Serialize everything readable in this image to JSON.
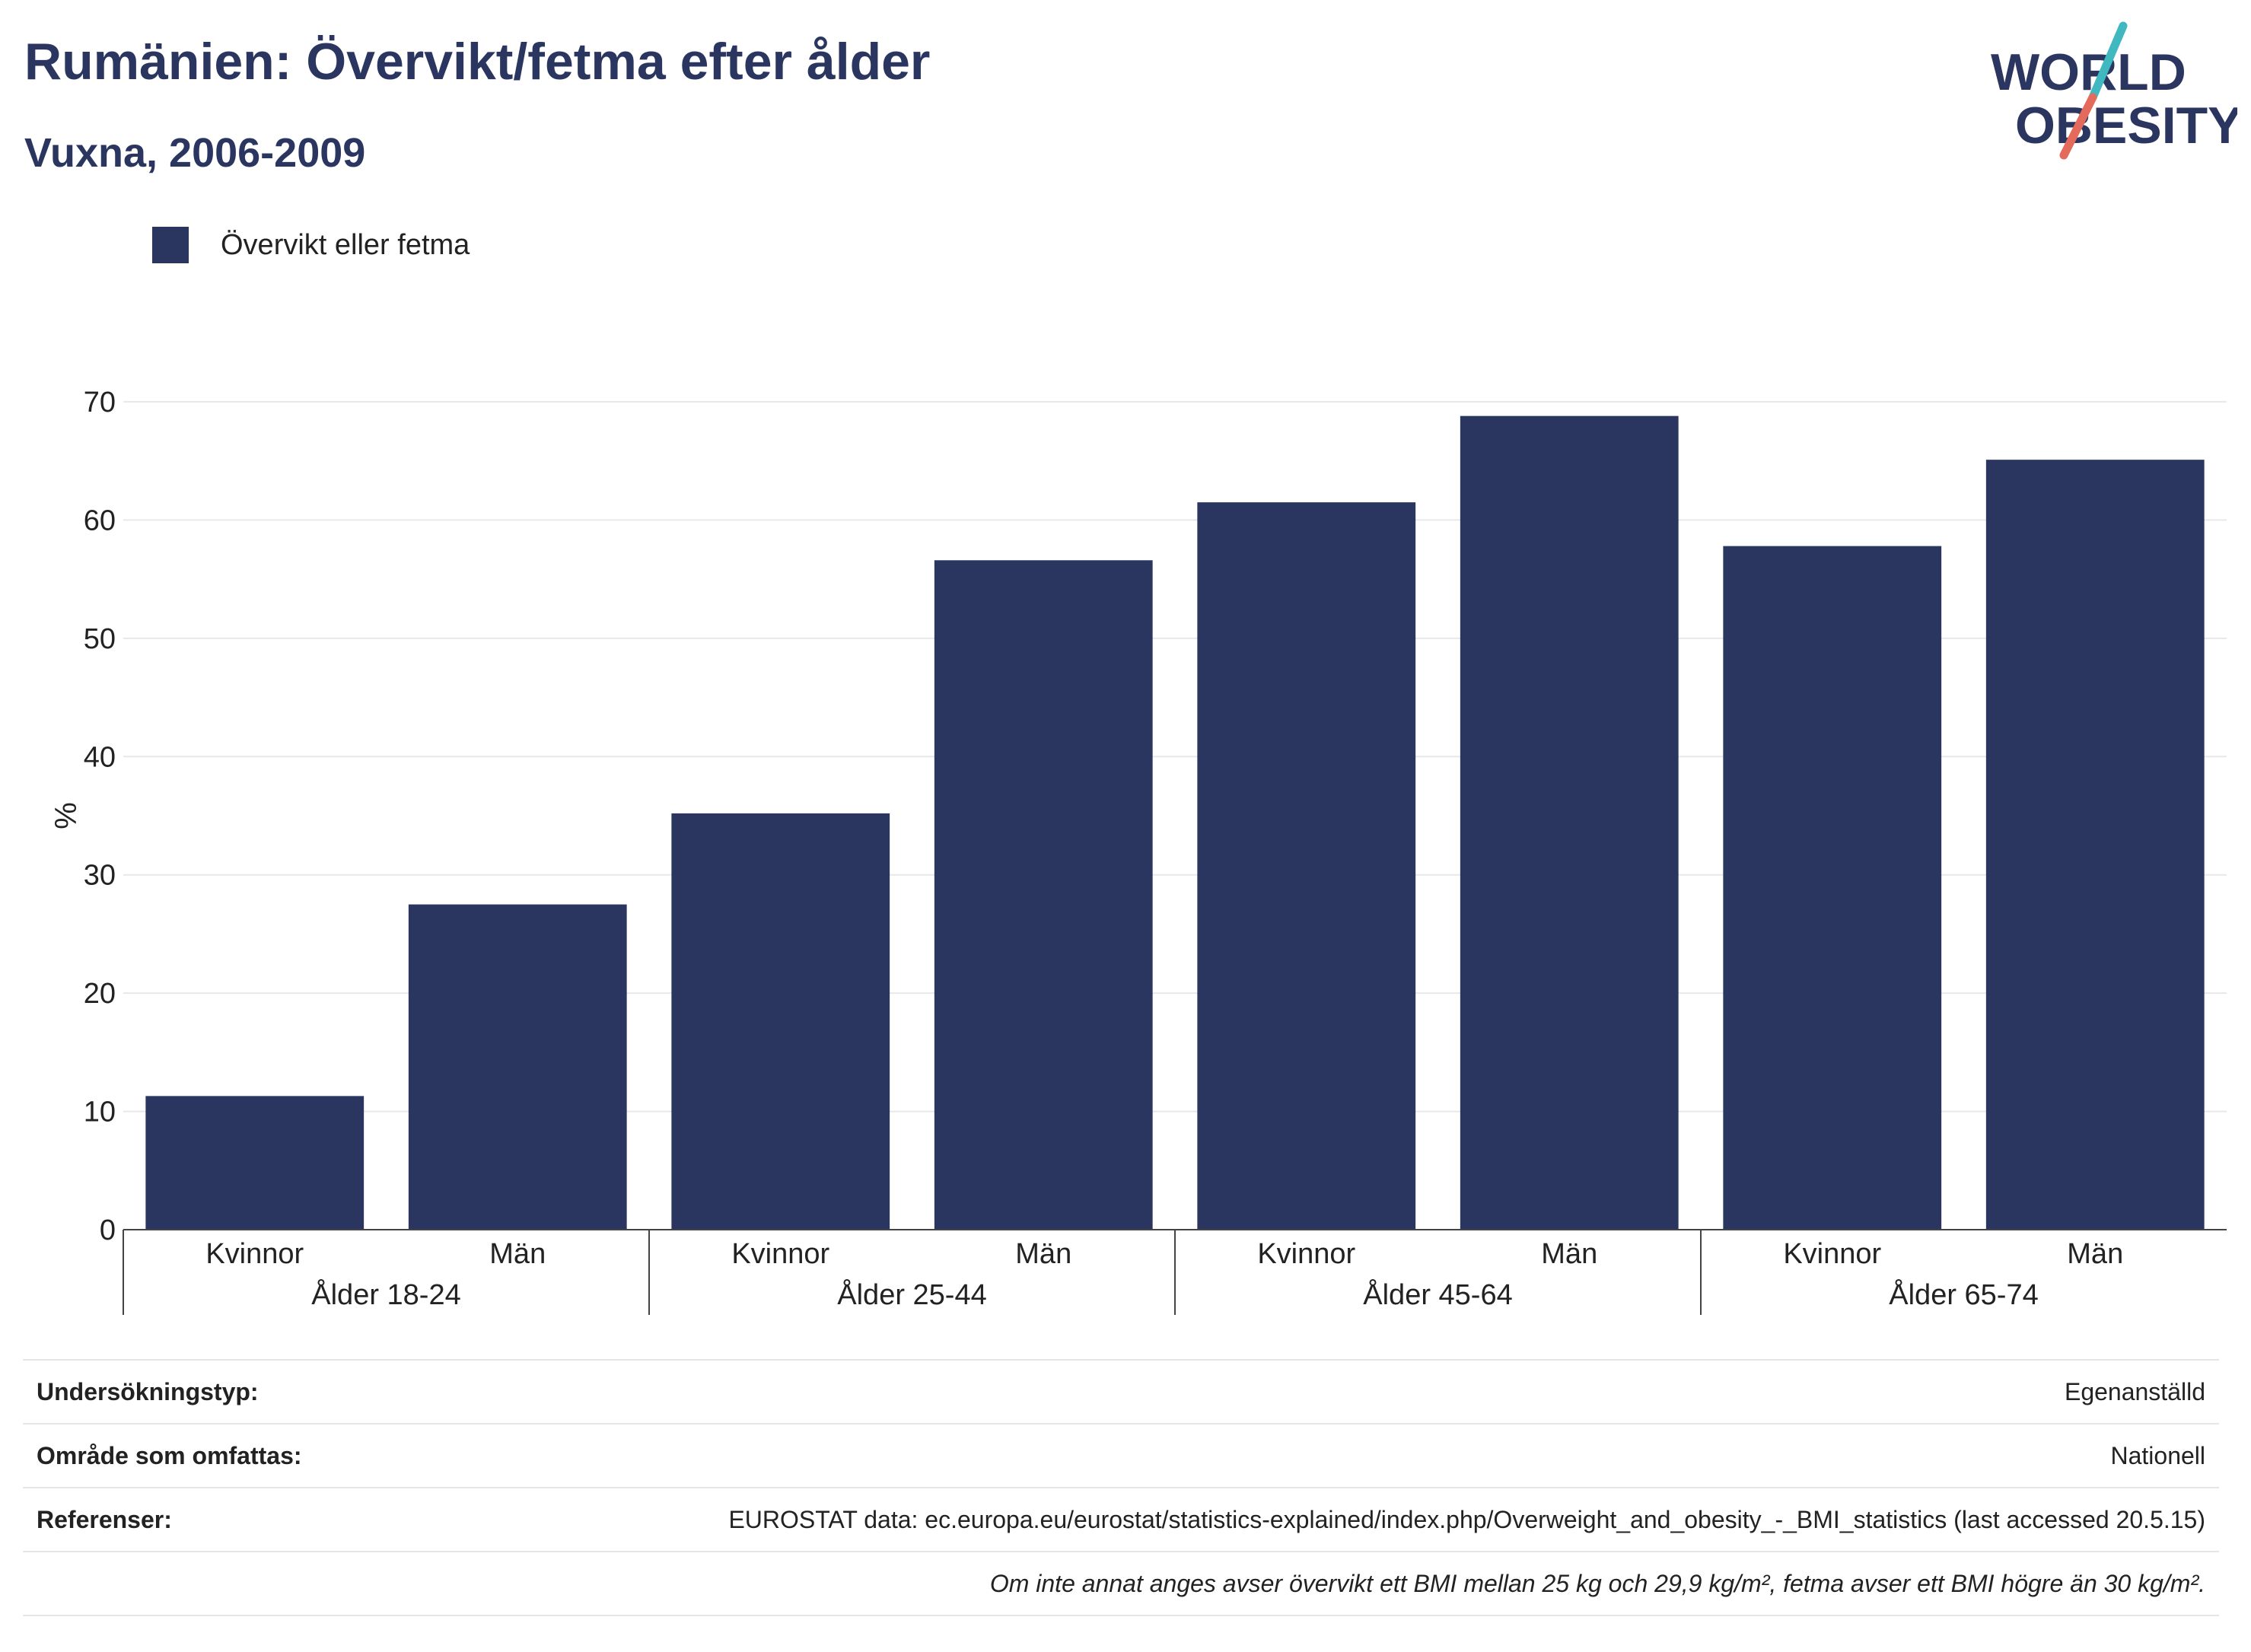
{
  "header": {
    "title": "Rumänien: Övervikt/fetma efter ålder",
    "subtitle": "Vuxna, 2006-2009"
  },
  "logo": {
    "line1": "WORLD",
    "line2": "OBESITY",
    "colors": {
      "text": "#2b3660",
      "accent_teal": "#3fb8c0",
      "accent_coral": "#e46b5c"
    }
  },
  "legend": {
    "items": [
      {
        "label": "Övervikt eller fetma",
        "color": "#2b3660"
      }
    ]
  },
  "chart_data": {
    "type": "bar",
    "title": "",
    "xlabel": "",
    "ylabel": "%",
    "ylim": [
      0,
      70
    ],
    "yticks": [
      0,
      10,
      20,
      30,
      40,
      50,
      60,
      70
    ],
    "grid": true,
    "legend_position": "top-left",
    "bar_color": "#2b3660",
    "groups": [
      {
        "label": "Ålder 18-24",
        "categories": [
          "Kvinnor",
          "Män"
        ],
        "values": [
          11.3,
          27.5
        ]
      },
      {
        "label": "Ålder 25-44",
        "categories": [
          "Kvinnor",
          "Män"
        ],
        "values": [
          35.2,
          56.6
        ]
      },
      {
        "label": "Ålder 45-64",
        "categories": [
          "Kvinnor",
          "Män"
        ],
        "values": [
          61.5,
          68.8
        ]
      },
      {
        "label": "Ålder 65-74",
        "categories": [
          "Kvinnor",
          "Män"
        ],
        "values": [
          57.8,
          65.1
        ]
      }
    ],
    "series": [
      {
        "name": "Övervikt eller fetma"
      }
    ]
  },
  "footer": {
    "rows": [
      {
        "key": "Undersökningstyp:",
        "value": "Egenanställd"
      },
      {
        "key": "Område som omfattas:",
        "value": "Nationell"
      },
      {
        "key": "Referenser:",
        "value": "EUROSTAT data: ec.europa.eu/eurostat/statistics-explained/index.php/Overweight_and_obesity_-_BMI_statistics (last accessed 20.5.15)"
      }
    ],
    "note": "Om inte annat anges avser övervikt ett BMI mellan 25 kg och 29,9 kg/m², fetma avser ett BMI högre än 30 kg/m²."
  }
}
